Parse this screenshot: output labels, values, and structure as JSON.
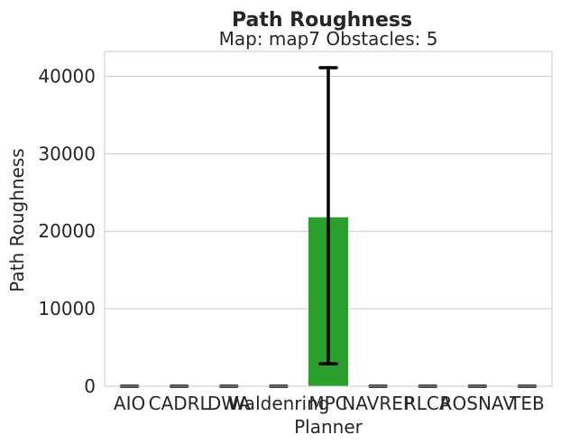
{
  "chart_data": {
    "type": "bar",
    "title": "Path Roughness",
    "subtitle": "Map: map7 Obstacles: 5",
    "xlabel": "Planner",
    "ylabel": "Path Roughness",
    "categories": [
      "AIO",
      "CADRL",
      "DWA",
      "Waldenring",
      "MPC",
      "NAVREP",
      "RLCA",
      "ROSNAV",
      "TEB"
    ],
    "values": [
      0,
      0,
      0,
      0,
      21800,
      0,
      0,
      0,
      0
    ],
    "error_low": [
      0,
      0,
      0,
      0,
      2900,
      0,
      0,
      0,
      0
    ],
    "error_high": [
      0,
      0,
      0,
      0,
      41100,
      0,
      0,
      0,
      0
    ],
    "yticks": [
      0,
      10000,
      20000,
      30000,
      40000
    ],
    "ylim": [
      0,
      43200
    ],
    "grid": true,
    "bar_color": "#2ca02c",
    "error_color": "#000000"
  }
}
